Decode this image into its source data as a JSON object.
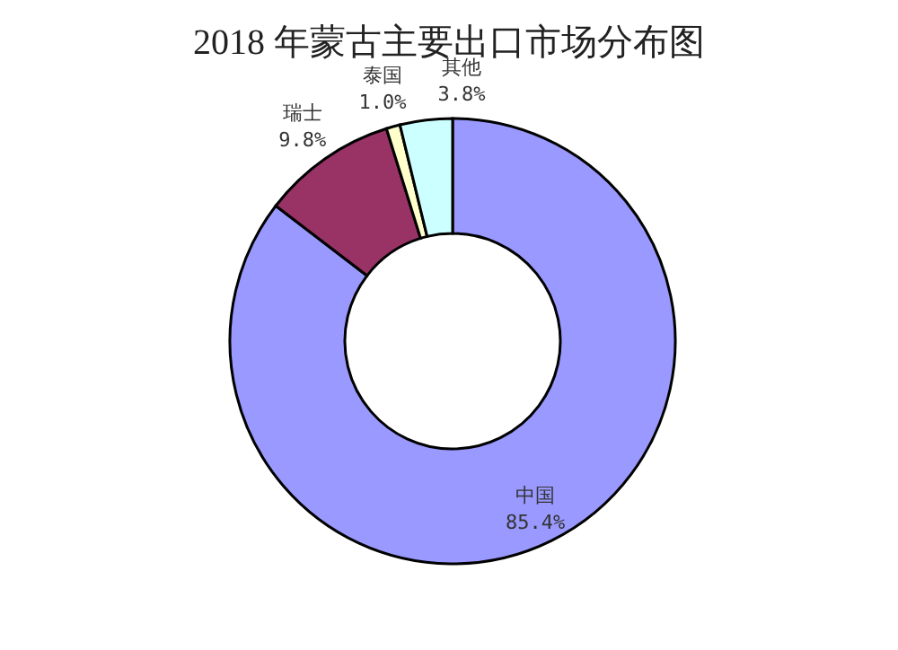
{
  "chart_data": {
    "type": "donut",
    "title": "2018 年蒙古主要出口市场分布图",
    "categories": [
      "中国",
      "瑞士",
      "泰国",
      "其他"
    ],
    "values": [
      85.4,
      9.8,
      1.0,
      3.8
    ],
    "value_labels": [
      "85.4%",
      "9.8%",
      "1.0%",
      "3.8%"
    ],
    "colors": [
      "#9999ff",
      "#993366",
      "#ffffcc",
      "#ccffff"
    ]
  }
}
